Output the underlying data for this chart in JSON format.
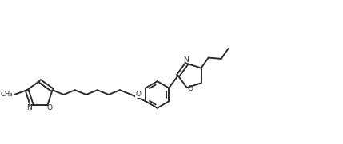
{
  "bg_color": "#ffffff",
  "line_color": "#2a2a2a",
  "line_width": 1.4,
  "fig_width": 4.29,
  "fig_height": 1.81,
  "dpi": 100,
  "xlim": [
    0,
    10.5
  ],
  "ylim": [
    0,
    4.5
  ]
}
